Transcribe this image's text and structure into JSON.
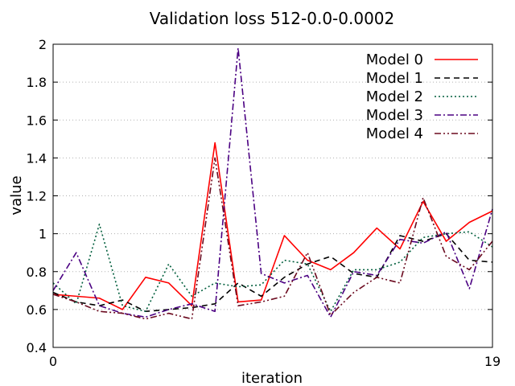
{
  "chart_data": {
    "type": "line",
    "title": "Validation loss 512-0.0-0.0002",
    "xlabel": "iteration",
    "ylabel": "value",
    "xlim": [
      0,
      19
    ],
    "ylim": [
      0.4,
      2
    ],
    "x_ticks": [
      "0",
      "19"
    ],
    "y_ticks": [
      "0.4",
      "0.6",
      "0.8",
      "1",
      "1.2",
      "1.4",
      "1.6",
      "1.8",
      "2"
    ],
    "grid": "horizontal dotted",
    "legend_position": "top-right",
    "x": [
      0,
      1,
      2,
      3,
      4,
      5,
      6,
      7,
      8,
      9,
      10,
      11,
      12,
      13,
      14,
      15,
      16,
      17,
      18,
      19
    ],
    "series": [
      {
        "name": "Model 0",
        "color": "#ff0000",
        "dash": "solid",
        "values": [
          0.68,
          0.67,
          0.66,
          0.6,
          0.77,
          0.74,
          0.62,
          1.48,
          0.64,
          0.65,
          0.99,
          0.86,
          0.81,
          0.9,
          1.03,
          0.92,
          1.17,
          0.96,
          1.06,
          1.12
        ]
      },
      {
        "name": "Model 1",
        "color": "#000000",
        "dash": "dashed",
        "values": [
          0.69,
          0.64,
          0.62,
          0.65,
          0.59,
          0.6,
          0.61,
          0.63,
          0.74,
          0.67,
          0.77,
          0.84,
          0.88,
          0.79,
          0.77,
          0.99,
          0.96,
          1.0,
          0.86,
          0.85
        ]
      },
      {
        "name": "Model 2",
        "color": "#005e3c",
        "dash": "dotted",
        "values": [
          0.74,
          0.63,
          1.05,
          0.62,
          0.59,
          0.84,
          0.67,
          0.74,
          0.72,
          0.73,
          0.86,
          0.84,
          0.59,
          0.81,
          0.81,
          0.85,
          0.98,
          1.0,
          1.01,
          0.93
        ]
      },
      {
        "name": "Model 3",
        "color": "#4b0082",
        "dash": "dashdot",
        "values": [
          0.7,
          0.9,
          0.62,
          0.58,
          0.56,
          0.6,
          0.63,
          0.59,
          1.98,
          0.79,
          0.74,
          0.78,
          0.56,
          0.8,
          0.78,
          0.97,
          0.95,
          1.01,
          0.71,
          1.13
        ]
      },
      {
        "name": "Model 4",
        "color": "#6b0a1f",
        "dash": "dashdotdot",
        "values": [
          0.68,
          0.64,
          0.59,
          0.58,
          0.55,
          0.58,
          0.55,
          1.4,
          0.62,
          0.64,
          0.67,
          0.9,
          0.57,
          0.69,
          0.77,
          0.74,
          1.19,
          0.88,
          0.81,
          0.96
        ]
      }
    ]
  }
}
